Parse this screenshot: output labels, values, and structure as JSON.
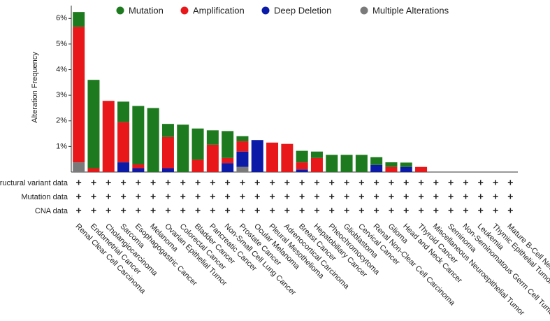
{
  "chart_data": {
    "type": "stacked-bar",
    "y_axis_label": "Alteration Frequency",
    "categories": [
      "Renal Clear Cell Carcinoma",
      "Endometrial Cancer",
      "Cholangiocarcinoma",
      "Sarcoma",
      "Esophagogastric Cancer",
      "Melanoma",
      "Ovarian Epithelial Tumor",
      "Colorectal Cancer",
      "Bladder Cancer",
      "Pancreatic Cancer",
      "Non-Small Cell Lung Cancer",
      "Prostate Cancer",
      "Ocular Melanoma",
      "Pleural Mesothelioma",
      "Adrenocortical Carcinoma",
      "Breast Cancer",
      "Hepatobiliary Cancer",
      "Pheochromocytoma",
      "Glioblastoma",
      "Cervical Cancer",
      "Renal Non-Clear Cell Carcinoma",
      "Glioma",
      "Head and Neck Cancer",
      "Thyroid Cancer",
      "Miscellaneous Neuroepithelial Tumor",
      "Seminoma",
      "Non-Seminomatous Germ Cell Tumor",
      "Leukemia",
      "Thymic Epithelial Tumor",
      "Mature B-Cell Neoplasms"
    ],
    "series": [
      {
        "name": "Mutation",
        "color": "#1e7a1e",
        "values": [
          0.58,
          3.45,
          0,
          0.8,
          2.28,
          2.5,
          0.51,
          1.85,
          1.22,
          0.56,
          1.05,
          0.2,
          0,
          0,
          0,
          0.45,
          0.25,
          0.67,
          0.67,
          0.67,
          0.3,
          0.18,
          0.17,
          0,
          0,
          0,
          0,
          0,
          0,
          0
        ]
      },
      {
        "name": "Amplification",
        "color": "#e8181a",
        "values": [
          5.29,
          0.15,
          2.78,
          1.57,
          0.15,
          0,
          1.22,
          0,
          0.48,
          1.07,
          0.2,
          0.4,
          0,
          1.15,
          1.1,
          0.28,
          0.55,
          0,
          0,
          0,
          0,
          0.2,
          0,
          0.2,
          0,
          0,
          0,
          0,
          0,
          0
        ]
      },
      {
        "name": "Deep Deletion",
        "color": "#0c1aa8",
        "values": [
          0,
          0,
          0,
          0.38,
          0.15,
          0,
          0.15,
          0,
          0,
          0,
          0.35,
          0.6,
          1.25,
          0,
          0,
          0.1,
          0,
          0,
          0,
          0,
          0.28,
          0,
          0.2,
          0,
          0,
          0,
          0,
          0,
          0,
          0
        ]
      },
      {
        "name": "Multiple Alterations",
        "color": "#7a7a7a",
        "values": [
          0.38,
          0,
          0,
          0,
          0,
          0,
          0,
          0,
          0,
          0,
          0,
          0.2,
          0,
          0,
          0,
          0,
          0,
          0,
          0,
          0,
          0,
          0,
          0,
          0,
          0,
          0,
          0,
          0,
          0,
          0
        ]
      }
    ],
    "stack_order": [
      3,
      2,
      1,
      0
    ],
    "ylim": [
      0,
      6.5
    ],
    "yticks": [
      {
        "value": 1,
        "label": "1%"
      },
      {
        "value": 2,
        "label": "2%"
      },
      {
        "value": 3,
        "label": "3%"
      },
      {
        "value": 4,
        "label": "4%"
      },
      {
        "value": 5,
        "label": "5%"
      },
      {
        "value": 6,
        "label": "6%"
      }
    ],
    "profile_rows": [
      "Structural variant data",
      "Mutation data",
      "CNA data"
    ],
    "profile_marker": "+",
    "legend": "top"
  }
}
